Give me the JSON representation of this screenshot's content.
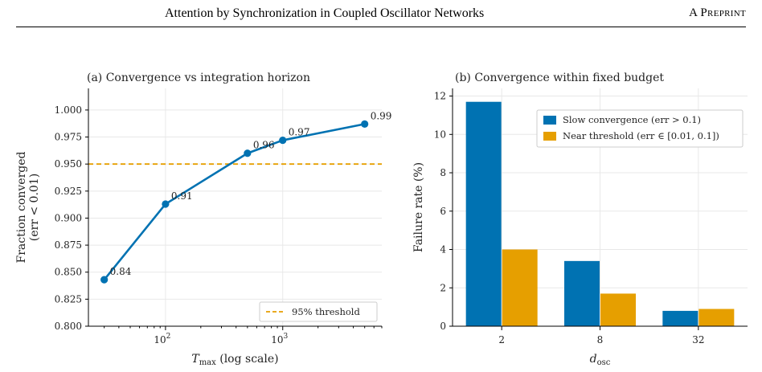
{
  "header": {
    "title": "Attention by Synchronization in Coupled Oscillator Networks",
    "label": "A Preprint"
  },
  "chart_data": [
    {
      "type": "line",
      "title": "(a) Convergence vs integration horizon",
      "xlabel": "T_max (log scale)",
      "xlabel_main": "T",
      "xlabel_sub": "max",
      "xlabel_rest": " (log scale)",
      "ylabel_line1": "Fraction converged",
      "ylabel_line2": "(err < 0.01)",
      "x_scale": "log",
      "xlim": [
        22,
        7000
      ],
      "ylim": [
        0.8,
        1.02
      ],
      "x_ticks": [
        100,
        1000
      ],
      "x_tick_labels": [
        {
          "base": "10",
          "exp": "2"
        },
        {
          "base": "10",
          "exp": "3"
        }
      ],
      "y_ticks": [
        0.8,
        0.825,
        0.85,
        0.875,
        0.9,
        0.925,
        0.95,
        0.975,
        1.0
      ],
      "y_tick_labels": [
        "0.800",
        "0.825",
        "0.850",
        "0.875",
        "0.900",
        "0.925",
        "0.950",
        "0.975",
        "1.000"
      ],
      "grid": true,
      "series": [
        {
          "name": "",
          "color": "#0072b2",
          "x": [
            30,
            100,
            500,
            1000,
            5000
          ],
          "y": [
            0.843,
            0.913,
            0.96,
            0.972,
            0.987
          ],
          "labels": [
            "0.84",
            "0.91",
            "0.96",
            "0.97",
            "0.99"
          ]
        }
      ],
      "reference_line": {
        "y": 0.95,
        "color": "#e69f00",
        "style": "dashed",
        "name": "95% threshold"
      },
      "legend_position": "lower-right"
    },
    {
      "type": "bar",
      "title": "(b) Convergence within fixed budget",
      "xlabel_main": "d",
      "xlabel_sub": "osc",
      "ylabel": "Failure rate (%)",
      "categories": [
        "2",
        "8",
        "32"
      ],
      "ylim": [
        0,
        12.4
      ],
      "y_ticks": [
        0,
        2,
        4,
        6,
        8,
        10,
        12
      ],
      "y_tick_labels": [
        "0",
        "2",
        "4",
        "6",
        "8",
        "10",
        "12"
      ],
      "grid": true,
      "series": [
        {
          "name": "Slow convergence (err > 0.1)",
          "color": "#0072b2",
          "values": [
            11.7,
            3.4,
            0.8
          ]
        },
        {
          "name": "Near threshold (err ∈ [0.01, 0.1])",
          "color": "#e69f00",
          "values": [
            4.0,
            1.7,
            0.9
          ]
        }
      ],
      "legend_position": "top-right"
    }
  ]
}
